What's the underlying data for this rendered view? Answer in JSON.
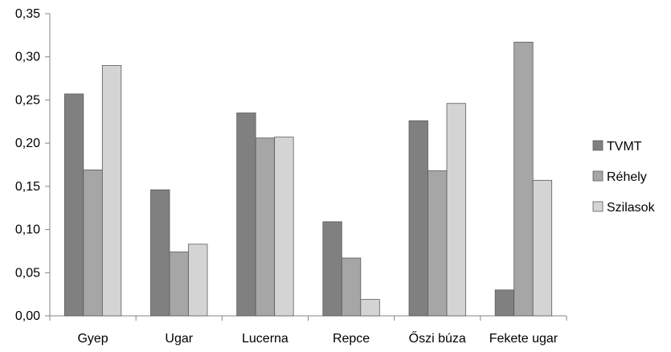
{
  "chart_data": {
    "type": "bar",
    "categories": [
      "Gyep",
      "Ugar",
      "Lucerna",
      "Repce",
      "Őszi búza",
      "Fekete ugar"
    ],
    "series": [
      {
        "name": "TVMT",
        "color": "#808080",
        "values": [
          0.257,
          0.146,
          0.235,
          0.109,
          0.226,
          0.03
        ]
      },
      {
        "name": "Réhely",
        "color": "#a6a6a6",
        "values": [
          0.169,
          0.074,
          0.206,
          0.067,
          0.168,
          0.317
        ]
      },
      {
        "name": "Szilasok",
        "color": "#d4d4d4",
        "values": [
          0.29,
          0.083,
          0.207,
          0.019,
          0.246,
          0.157
        ]
      }
    ],
    "ylim": [
      0,
      0.35
    ],
    "ytick_labels": [
      "0,00",
      "0,05",
      "0,10",
      "0,15",
      "0,20",
      "0,25",
      "0,30",
      "0,35"
    ],
    "grid": false,
    "legend_position": "right",
    "title": "",
    "xlabel": "",
    "ylabel": ""
  }
}
